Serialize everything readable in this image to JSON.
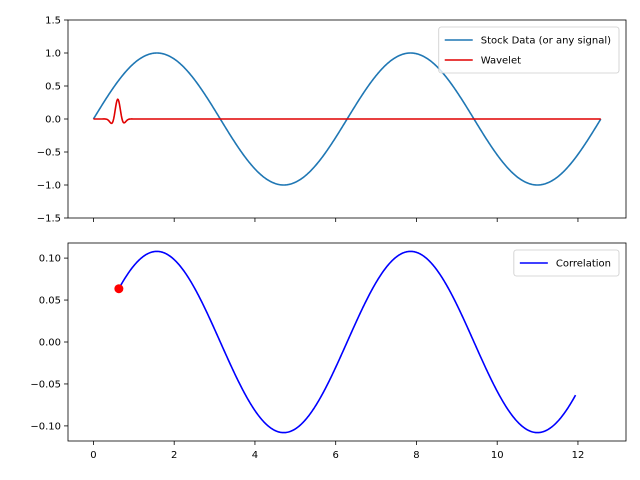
{
  "chart_data": [
    {
      "type": "line",
      "title": "",
      "xlabel": "",
      "ylabel": "",
      "xlim": [
        -0.63,
        13.19
      ],
      "ylim": [
        -1.5,
        1.5
      ],
      "x_ticks": [
        0,
        2,
        4,
        6,
        8,
        10,
        12
      ],
      "x_tick_labels_visible": false,
      "y_ticks": [
        -1.5,
        -1.0,
        -0.5,
        0.0,
        0.5,
        1.0,
        1.5
      ],
      "y_tick_labels": [
        "−1.5",
        "−1.0",
        "−0.5",
        "0.0",
        "0.5",
        "1.0",
        "1.5"
      ],
      "legend": {
        "position": "upper right"
      },
      "series": [
        {
          "name": "Stock Data (or any signal)",
          "color": "#1f77b4",
          "function": "sin(x)",
          "x_range": [
            0,
            12.566
          ]
        },
        {
          "name": "Wavelet",
          "color": "#e00000",
          "function": "sin(2*pi*f*(x-0.5))*0.30*exp(-((x-0.58)^2)/(2*0.12^2))",
          "x_range": [
            0,
            12.566
          ]
        }
      ]
    },
    {
      "type": "line",
      "title": "",
      "xlabel": "",
      "ylabel": "",
      "xlim": [
        -0.63,
        13.19
      ],
      "ylim": [
        -0.118,
        0.118
      ],
      "x_ticks": [
        0,
        2,
        4,
        6,
        8,
        10,
        12
      ],
      "x_tick_labels": [
        "0",
        "2",
        "4",
        "6",
        "8",
        "10",
        "12"
      ],
      "y_ticks": [
        -0.1,
        -0.05,
        0.0,
        0.05,
        0.1
      ],
      "y_tick_labels": [
        "−0.10",
        "−0.05",
        "0.00",
        "0.05",
        "0.10"
      ],
      "legend": {
        "position": "upper right"
      },
      "series": [
        {
          "name": "Correlation",
          "color": "#0000ff",
          "function": "0.108*sin(x)",
          "x_range": [
            0.63,
            11.94
          ]
        }
      ],
      "marker": {
        "x": 0.63,
        "y": 0.0635,
        "color": "#ff0000"
      }
    }
  ]
}
